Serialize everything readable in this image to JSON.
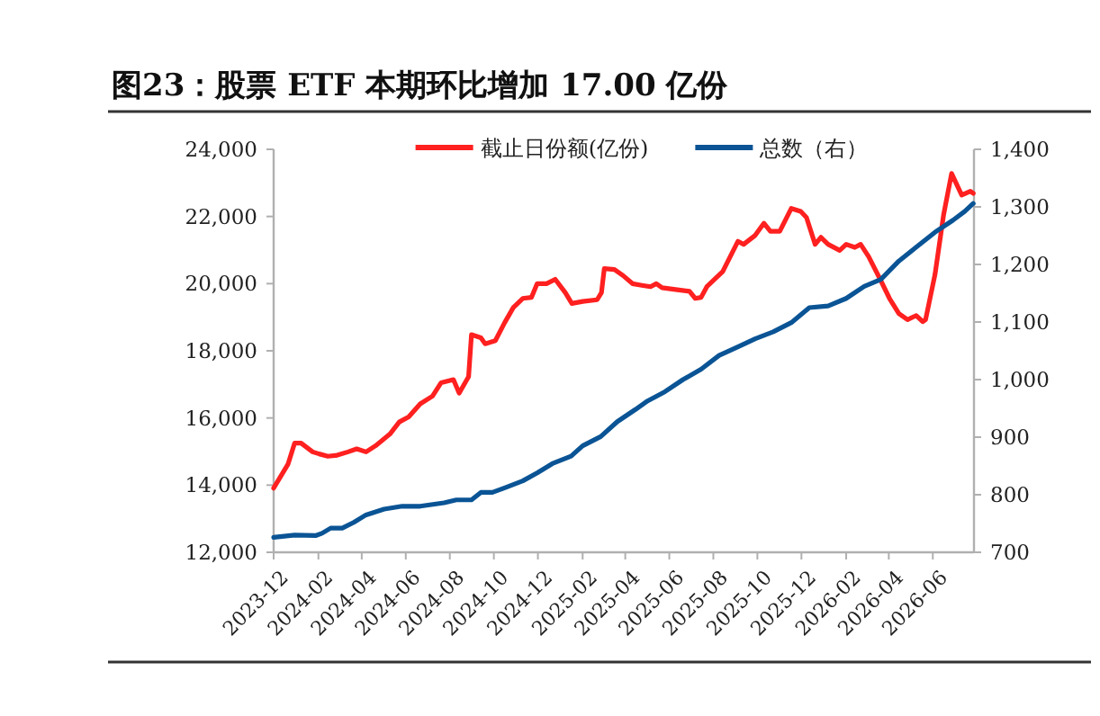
{
  "chart_data": {
    "type": "line",
    "title": "图23：股票 ETF 本期环比增加 17.00 亿份",
    "legend": "top",
    "grid": false,
    "marker": "none",
    "line_style": "solid",
    "xlim": [
      "2023-12-01",
      "2026-07-28"
    ],
    "xticks": [
      "2023-12",
      "2024-02",
      "2024-04",
      "2024-06",
      "2024-08",
      "2024-10",
      "2024-12",
      "2025-02",
      "2025-04",
      "2025-06",
      "2025-08",
      "2025-10",
      "2025-12",
      "2026-02",
      "2026-04",
      "2026-06"
    ],
    "ylim": [
      12000,
      24000
    ],
    "yticks": [
      {
        "value": 12000,
        "label": "12,000"
      },
      {
        "value": 14000,
        "label": "14,000"
      },
      {
        "value": 16000,
        "label": "16,000"
      },
      {
        "value": 18000,
        "label": "18,000"
      },
      {
        "value": 20000,
        "label": "20,000"
      },
      {
        "value": 22000,
        "label": "22,000"
      },
      {
        "value": 24000,
        "label": "24,000"
      }
    ],
    "y2lim": [
      700,
      1400
    ],
    "y2ticks": [
      700,
      800,
      900,
      {
        "value": 1000,
        "label": "1,000"
      },
      {
        "value": 1100,
        "label": "1,100"
      },
      {
        "value": 1200,
        "label": "1,200"
      },
      {
        "value": 1300,
        "label": "1,300"
      },
      {
        "value": 1400,
        "label": "1,400"
      }
    ],
    "series": [
      {
        "name": "截止日份额(亿份)",
        "color": "#ff2020",
        "x": [
          "2023-12-01",
          "2023-12-21",
          "2023-12-30",
          "2024-01-08",
          "2024-01-24",
          "2024-02-02",
          "2024-02-14",
          "2024-02-27",
          "2024-03-13",
          "2024-03-25",
          "2024-04-07",
          "2024-04-20",
          "2024-05-10",
          "2024-05-23",
          "2024-06-05",
          "2024-06-21",
          "2024-07-08",
          "2024-07-20",
          "2024-08-06",
          "2024-08-14",
          "2024-08-27",
          "2024-08-31",
          "2024-09-13",
          "2024-09-19",
          "2024-10-03",
          "2024-10-16",
          "2024-10-28",
          "2024-11-10",
          "2024-11-22",
          "2024-11-30",
          "2024-12-13",
          "2024-12-25",
          "2025-01-08",
          "2025-01-17",
          "2025-02-01",
          "2025-02-21",
          "2025-02-27",
          "2025-03-03",
          "2025-03-17",
          "2025-03-29",
          "2025-04-11",
          "2025-04-24",
          "2025-05-06",
          "2025-05-14",
          "2025-05-22",
          "2025-06-12",
          "2025-06-29",
          "2025-07-07",
          "2025-07-15",
          "2025-07-23",
          "2025-08-14",
          "2025-09-04",
          "2025-09-12",
          "2025-09-28",
          "2025-10-10",
          "2025-10-19",
          "2025-11-01",
          "2025-11-17",
          "2025-11-30",
          "2025-12-08",
          "2025-12-20",
          "2025-12-28",
          "2026-01-07",
          "2026-01-23",
          "2026-02-01",
          "2026-02-13",
          "2026-02-21",
          "2026-03-04",
          "2026-03-21",
          "2026-04-02",
          "2026-04-15",
          "2026-04-27",
          "2026-05-09",
          "2026-05-18",
          "2026-05-22",
          "2026-06-04",
          "2026-06-16",
          "2026-06-27",
          "2026-07-11",
          "2026-07-23",
          "2026-07-27"
        ],
        "values": [
          13910,
          14630,
          15250,
          15250,
          14990,
          14930,
          14860,
          14890,
          14990,
          15080,
          14990,
          15170,
          15520,
          15880,
          16030,
          16420,
          16650,
          17050,
          17140,
          16740,
          17230,
          18480,
          18390,
          18210,
          18300,
          18840,
          19290,
          19560,
          19590,
          20000,
          20000,
          20130,
          19730,
          19410,
          19470,
          19520,
          19730,
          20450,
          20420,
          20240,
          20000,
          19950,
          19910,
          20000,
          19880,
          19820,
          19770,
          19560,
          19590,
          19910,
          20360,
          21260,
          21170,
          21440,
          21800,
          21560,
          21560,
          22240,
          22150,
          21970,
          21170,
          21380,
          21170,
          20990,
          21170,
          21080,
          21170,
          20810,
          20090,
          19560,
          19110,
          18930,
          19050,
          18870,
          18930,
          20270,
          22060,
          23280,
          22640,
          22750,
          22690
        ]
      },
      {
        "name": "总数（右）",
        "color": "#0a5495",
        "axis": "y2",
        "x": [
          "2023-12-01",
          "2023-12-30",
          "2024-01-28",
          "2024-02-06",
          "2024-02-18",
          "2024-03-05",
          "2024-03-21",
          "2024-04-07",
          "2024-05-02",
          "2024-05-27",
          "2024-06-21",
          "2024-07-24",
          "2024-08-10",
          "2024-08-31",
          "2024-09-13",
          "2024-09-29",
          "2024-10-16",
          "2024-11-10",
          "2024-11-30",
          "2024-12-21",
          "2025-01-16",
          "2025-02-01",
          "2025-02-26",
          "2025-03-21",
          "2025-04-15",
          "2025-05-02",
          "2025-05-26",
          "2025-06-20",
          "2025-07-15",
          "2025-08-09",
          "2025-09-04",
          "2025-09-28",
          "2025-10-23",
          "2025-11-17",
          "2025-12-12",
          "2026-01-07",
          "2026-02-01",
          "2026-02-26",
          "2026-03-21",
          "2026-04-15",
          "2026-05-09",
          "2026-06-04",
          "2026-06-29",
          "2026-07-15",
          "2026-07-27"
        ],
        "values": [
          726,
          730,
          729,
          733,
          742,
          742,
          752,
          765,
          775,
          780,
          780,
          786,
          791,
          791,
          804,
          804,
          812,
          824,
          838,
          854,
          867,
          885,
          901,
          927,
          948,
          963,
          979,
          1000,
          1018,
          1042,
          1057,
          1071,
          1083,
          1099,
          1125,
          1128,
          1141,
          1162,
          1174,
          1206,
          1230,
          1256,
          1277,
          1292,
          1306
        ]
      }
    ]
  }
}
